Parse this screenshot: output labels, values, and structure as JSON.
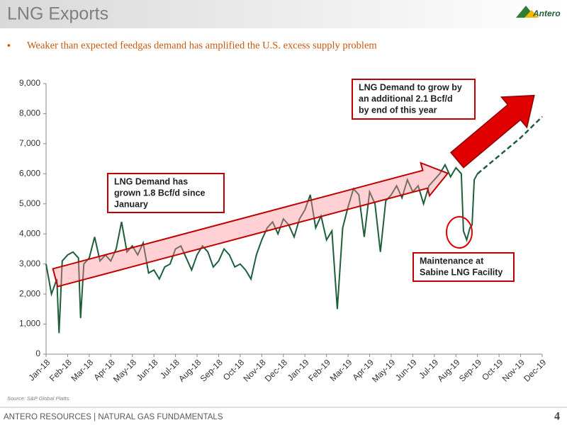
{
  "header": {
    "title": "LNG Exports",
    "logo": "Antero"
  },
  "bullet": "Weaker than expected feedgas demand has amplified the U.S. excess supply problem",
  "chart_data": {
    "type": "line",
    "x": [
      0,
      0.25,
      0.5,
      0.6,
      0.75,
      1,
      1.25,
      1.5,
      1.6,
      1.75,
      2,
      2.25,
      2.5,
      2.75,
      3,
      3.25,
      3.5,
      3.75,
      4,
      4.25,
      4.5,
      4.75,
      5,
      5.25,
      5.5,
      5.75,
      6,
      6.25,
      6.5,
      6.75,
      7,
      7.25,
      7.5,
      7.75,
      8,
      8.25,
      8.5,
      8.75,
      9,
      9.25,
      9.5,
      9.75,
      10,
      10.25,
      10.5,
      10.75,
      11,
      11.25,
      11.5,
      11.75,
      12,
      12.25,
      12.5,
      12.75,
      13,
      13.25,
      13.5,
      13.75,
      14,
      14.25,
      14.5,
      14.75,
      15,
      15.25,
      15.5,
      15.75,
      16,
      16.25,
      16.5,
      16.75,
      17,
      17.25,
      17.5,
      17.75,
      18,
      18.25,
      18.5,
      18.75,
      19,
      19.25,
      19.35,
      19.5,
      19.65,
      19.75,
      19.85,
      20
    ],
    "series": [
      {
        "color": "#1e5e3a",
        "values": [
          3000,
          2000,
          2500,
          700,
          3100,
          3300,
          3400,
          3200,
          1200,
          3000,
          3200,
          3900,
          3100,
          3300,
          3100,
          3500,
          4400,
          3400,
          3600,
          3300,
          3700,
          2700,
          2800,
          2500,
          2900,
          3000,
          3500,
          3600,
          3200,
          2800,
          3300,
          3600,
          3400,
          2900,
          3100,
          3500,
          3300,
          2900,
          3000,
          2800,
          2500,
          3300,
          3800,
          4200,
          4400,
          4000,
          4500,
          4300,
          3900,
          4500,
          4800,
          5300,
          4200,
          4600,
          3800,
          4100,
          1500,
          4200,
          4900,
          5500,
          5300,
          3900,
          5400,
          5000,
          3400,
          5100,
          5300,
          5600,
          5200,
          5800,
          5400,
          5600,
          5000,
          5600,
          5800,
          6000,
          6300,
          5900,
          6200,
          6000,
          4100,
          3800,
          4200,
          4300,
          5800,
          6000
        ]
      },
      {
        "color": "#1e5e3a",
        "dashed": true,
        "x": [
          20,
          21,
          22,
          23
        ],
        "values": [
          6000,
          6600,
          7200,
          7900
        ]
      }
    ],
    "xlim": [
      0,
      23
    ],
    "xticks": [
      {
        "value": 0,
        "label": "Jan-18"
      },
      {
        "value": 1,
        "label": "Feb-18"
      },
      {
        "value": 2,
        "label": "Mar-18"
      },
      {
        "value": 3,
        "label": "Apr-18"
      },
      {
        "value": 4,
        "label": "May-18"
      },
      {
        "value": 5,
        "label": "Jun-18"
      },
      {
        "value": 6,
        "label": "Jul-18"
      },
      {
        "value": 7,
        "label": "Aug-18"
      },
      {
        "value": 8,
        "label": "Sep-18"
      },
      {
        "value": 9,
        "label": "Oct-18"
      },
      {
        "value": 10,
        "label": "Nov-18"
      },
      {
        "value": 11,
        "label": "Dec-18"
      },
      {
        "value": 12,
        "label": "Jan-19"
      },
      {
        "value": 13,
        "label": "Feb-19"
      },
      {
        "value": 14,
        "label": "Mar-19"
      },
      {
        "value": 15,
        "label": "Apr-19"
      },
      {
        "value": 16,
        "label": "May-19"
      },
      {
        "value": 17,
        "label": "Jun-19"
      },
      {
        "value": 18,
        "label": "Jul-19"
      },
      {
        "value": 19,
        "label": "Aug-19"
      },
      {
        "value": 20,
        "label": "Sep-19"
      },
      {
        "value": 21,
        "label": "Oct-19"
      },
      {
        "value": 22,
        "label": "Nov-19"
      },
      {
        "value": 23,
        "label": "Dec-19"
      }
    ],
    "ylim": [
      0,
      9000
    ],
    "yticks": [
      0,
      {
        "value": 1000,
        "label": "1,000"
      },
      {
        "value": 2000,
        "label": "2,000"
      },
      {
        "value": 3000,
        "label": "3,000"
      },
      {
        "value": 4000,
        "label": "4,000"
      },
      {
        "value": 5000,
        "label": "5,000"
      },
      {
        "value": 6000,
        "label": "6,000"
      },
      {
        "value": 7000,
        "label": "7,000"
      },
      {
        "value": 8000,
        "label": "8,000"
      },
      {
        "value": 9000,
        "label": "9,000"
      }
    ],
    "annotations": [
      [
        "LNG Demand has",
        "grown 1.8 Bcf/d since",
        "January"
      ],
      [
        "LNG Demand to grow by",
        "an additional 2.1 Bcf/d",
        "by end of  this year"
      ],
      [
        "Maintenance at",
        "Sabine LNG Facility"
      ]
    ]
  },
  "source": "Source: S&P Global Platts.",
  "footer": "ANTERO RESOURCES | NATURAL GAS FUNDAMENTALS",
  "page_number": "4"
}
